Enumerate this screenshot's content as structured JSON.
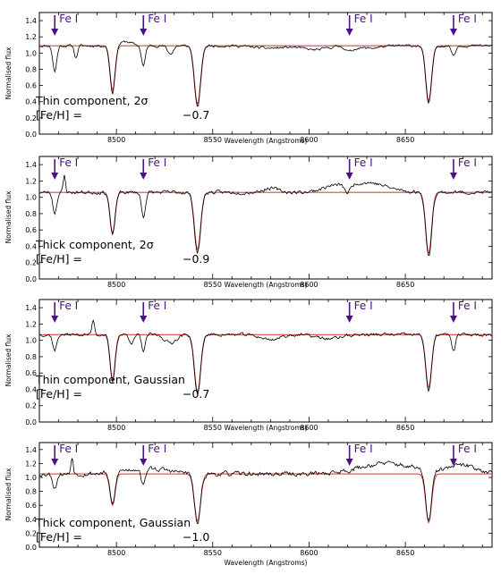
{
  "colors": {
    "observed": "#000000",
    "model": "#d84a3a",
    "marker": "#4b0f8a",
    "frame": "#000000"
  },
  "chart_data": [
    {
      "type": "line",
      "xlabel": "Wavelength (Angstroms)",
      "ylabel": "Normalised flux",
      "xlim": [
        8460,
        8695
      ],
      "ylim": [
        0,
        1.5
      ],
      "xticks": [
        8500,
        8550,
        8600,
        8650
      ],
      "yticks": [
        0.0,
        0.2,
        0.4,
        0.6,
        0.8,
        1.0,
        1.2,
        1.4
      ],
      "annotation_line1": "Thin component, 2σ",
      "annotation_line2_label": "[Fe/H] =",
      "annotation_line2_value": "−0.7",
      "markers": [
        {
          "label": "Fe I",
          "x": 8468
        },
        {
          "label": "Fe I",
          "x": 8514
        },
        {
          "label": "Fe I",
          "x": 8621
        },
        {
          "label": "Fe I",
          "x": 8675
        }
      ],
      "model": {
        "continuum": 1.09,
        "lines": [
          [
            8498.0,
            0.55,
            1.3
          ],
          [
            8542.1,
            0.72,
            1.6
          ],
          [
            8662.1,
            0.68,
            1.5
          ]
        ]
      },
      "observed": {
        "seed": 11,
        "noise": 0.028,
        "extra": [
          [
            8468,
            0.32,
            1.0
          ],
          [
            8479,
            0.15,
            0.8
          ],
          [
            8514,
            0.25,
            1.0
          ],
          [
            8528,
            0.1,
            1.5
          ],
          [
            8621,
            0.06,
            2.0
          ],
          [
            8675,
            0.12,
            1.0
          ]
        ],
        "bumps": [
          [
            8505,
            0.05,
            3
          ],
          [
            8580,
            -0.03,
            8
          ],
          [
            8603,
            -0.05,
            6
          ],
          [
            8630,
            -0.03,
            6
          ]
        ]
      }
    },
    {
      "type": "line",
      "xlabel": "Wavelength (Angstroms)",
      "ylabel": "Normalised flux",
      "xlim": [
        8460,
        8695
      ],
      "ylim": [
        0,
        1.5
      ],
      "xticks": [
        8500,
        8550,
        8600,
        8650
      ],
      "yticks": [
        0.0,
        0.2,
        0.4,
        0.6,
        0.8,
        1.0,
        1.2,
        1.4
      ],
      "annotation_line1": "Thick component, 2σ",
      "annotation_line2_label": "[Fe/H] =",
      "annotation_line2_value": "−0.9",
      "markers": [
        {
          "label": "Fe I",
          "x": 8468
        },
        {
          "label": "Fe I",
          "x": 8514
        },
        {
          "label": "Fe I",
          "x": 8621
        },
        {
          "label": "Fe I",
          "x": 8675
        }
      ],
      "model": {
        "continuum": 1.06,
        "lines": [
          [
            8498.0,
            0.5,
            1.3
          ],
          [
            8542.1,
            0.7,
            1.6
          ],
          [
            8662.1,
            0.75,
            1.5
          ]
        ]
      },
      "observed": {
        "seed": 23,
        "noise": 0.04,
        "extra": [
          [
            8468,
            0.25,
            1.0
          ],
          [
            8514,
            0.3,
            1.0
          ],
          [
            8473,
            -0.2,
            0.6
          ],
          [
            8620,
            0.1,
            1.5
          ]
        ],
        "bumps": [
          [
            8580,
            0.05,
            4
          ],
          [
            8630,
            0.12,
            10
          ],
          [
            8612,
            0.06,
            6
          ]
        ]
      }
    },
    {
      "type": "line",
      "xlabel": "Wavelength (Angstroms)",
      "ylabel": "Normalised flux",
      "xlim": [
        8460,
        8695
      ],
      "ylim": [
        0,
        1.5
      ],
      "xticks": [
        8500,
        8550,
        8600,
        8650
      ],
      "yticks": [
        0.0,
        0.2,
        0.4,
        0.6,
        0.8,
        1.0,
        1.2,
        1.4
      ],
      "annotation_line1": "Thin component, Gaussian",
      "annotation_line2_label": "[Fe/H] =",
      "annotation_line2_value": "−0.7",
      "markers": [
        {
          "label": "Fe I",
          "x": 8468
        },
        {
          "label": "Fe I",
          "x": 8514
        },
        {
          "label": "Fe I",
          "x": 8621
        },
        {
          "label": "Fe I",
          "x": 8675
        }
      ],
      "model": {
        "continuum": 1.07,
        "lines": [
          [
            8498.0,
            0.55,
            1.3
          ],
          [
            8542.1,
            0.7,
            1.6
          ],
          [
            8662.1,
            0.65,
            1.5
          ]
        ]
      },
      "observed": {
        "seed": 37,
        "noise": 0.035,
        "extra": [
          [
            8468,
            0.2,
            1.0
          ],
          [
            8514,
            0.2,
            1.0
          ],
          [
            8488,
            -0.18,
            0.7
          ],
          [
            8508,
            0.1,
            1.2
          ],
          [
            8675,
            0.2,
            1.0
          ]
        ],
        "bumps": [
          [
            8528,
            -0.1,
            3
          ],
          [
            8580,
            -0.06,
            5
          ],
          [
            8610,
            -0.05,
            6
          ]
        ]
      }
    },
    {
      "type": "line",
      "xlabel": "Wavelength (Angstroms)",
      "ylabel": "Normalised flux",
      "xlim": [
        8460,
        8695
      ],
      "ylim": [
        0,
        1.5
      ],
      "xticks": [
        8500,
        8550,
        8600,
        8650
      ],
      "yticks": [
        0.0,
        0.2,
        0.4,
        0.6,
        0.8,
        1.0,
        1.2,
        1.4
      ],
      "annotation_line1": "Thick component, Gaussian",
      "annotation_line2_label": "[Fe/H] =",
      "annotation_line2_value": "−1.0",
      "markers": [
        {
          "label": "Fe I",
          "x": 8468
        },
        {
          "label": "Fe I",
          "x": 8514
        },
        {
          "label": "Fe I",
          "x": 8621
        },
        {
          "label": "Fe I",
          "x": 8675
        }
      ],
      "model": {
        "continuum": 1.05,
        "lines": [
          [
            8498.0,
            0.45,
            1.3
          ],
          [
            8542.1,
            0.68,
            1.6
          ],
          [
            8662.1,
            0.7,
            1.5
          ]
        ]
      },
      "observed": {
        "seed": 53,
        "noise": 0.06,
        "extra": [
          [
            8468,
            0.2,
            1.0
          ],
          [
            8514,
            0.25,
            1.0
          ],
          [
            8477,
            -0.25,
            0.6
          ]
        ],
        "bumps": [
          [
            8640,
            0.15,
            14
          ],
          [
            8680,
            0.12,
            8
          ],
          [
            8515,
            0.08,
            12
          ]
        ]
      }
    }
  ]
}
